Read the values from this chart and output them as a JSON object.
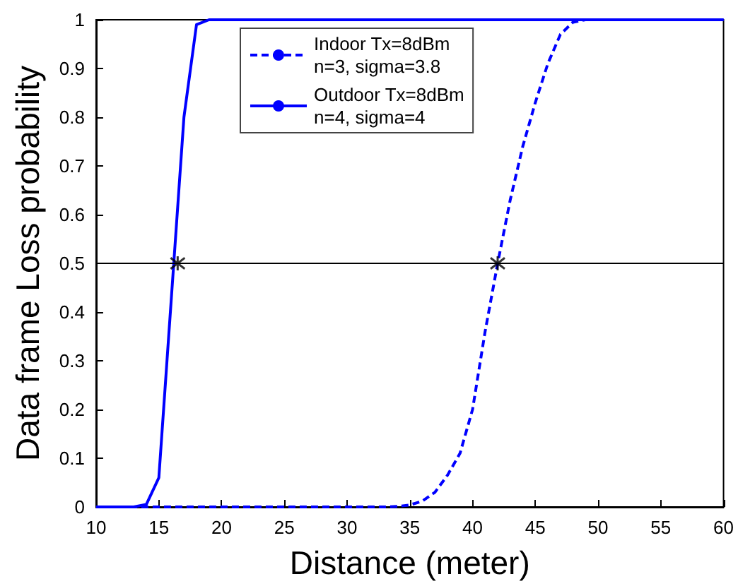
{
  "chart_data": {
    "type": "line",
    "xlabel": "Distance (meter)",
    "ylabel": "Data frame Loss probability",
    "xlim": [
      10,
      60
    ],
    "xticks": [
      10,
      15,
      20,
      25,
      30,
      35,
      40,
      45,
      50,
      55,
      60
    ],
    "ylim": [
      0,
      1
    ],
    "yticks": [
      0,
      0.1,
      0.2,
      0.3,
      0.4,
      0.5,
      0.6,
      0.7,
      0.8,
      0.9,
      1
    ],
    "grid": false,
    "legend": "top",
    "series": [
      {
        "name": "Indoor Tx=8dBm\nn=3, sigma=3.8",
        "color": "#0000ff",
        "line_style": "dashed",
        "x": [
          10,
          33,
          34,
          35,
          36,
          37,
          38,
          39,
          40,
          41,
          42,
          43,
          44,
          45,
          46,
          47,
          48,
          49,
          60
        ],
        "values": [
          0,
          0,
          0.001,
          0.004,
          0.012,
          0.03,
          0.065,
          0.11,
          0.2,
          0.36,
          0.5,
          0.63,
          0.74,
          0.83,
          0.91,
          0.97,
          0.995,
          1,
          1
        ]
      },
      {
        "name": "Outdoor Tx=8dBm\nn=4, sigma=4",
        "color": "#0000ff",
        "line_style": "solid",
        "x": [
          10,
          13,
          14,
          15,
          16,
          17,
          18,
          19,
          60
        ],
        "values": [
          0,
          0,
          0.005,
          0.06,
          0.43,
          0.8,
          0.99,
          1,
          1
        ]
      },
      {
        "type": "scatter",
        "marker": "cross",
        "color": "#000000",
        "x": [
          16.5,
          42
        ],
        "values": [
          0.5,
          0.5
        ]
      }
    ],
    "ref_lines": [
      {
        "axis": "y",
        "value": 0.5,
        "color": "#000000"
      }
    ]
  }
}
